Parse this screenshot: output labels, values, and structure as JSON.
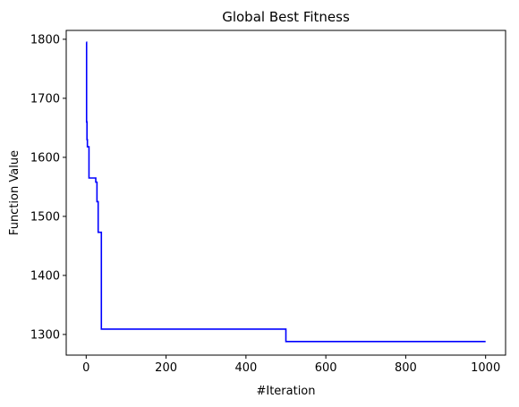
{
  "chart_data": {
    "type": "line",
    "title": "Global Best Fitness",
    "xlabel": "#Iteration",
    "ylabel": "Function Value",
    "xlim": [
      -50,
      1050
    ],
    "ylim": [
      1265,
      1815
    ],
    "x_ticks": [
      0,
      200,
      400,
      600,
      800,
      1000
    ],
    "y_ticks": [
      1300,
      1400,
      1500,
      1600,
      1700,
      1800
    ],
    "grid": false,
    "series": [
      {
        "color": "#0000ff",
        "step": "post",
        "x": [
          0,
          1,
          2,
          3,
          7,
          19,
          24,
          27,
          30,
          33,
          38,
          500,
          1000
        ],
        "y": [
          1795,
          1660,
          1630,
          1618,
          1565,
          1565,
          1558,
          1525,
          1473,
          1473,
          1309,
          1288,
          1288
        ]
      }
    ]
  }
}
